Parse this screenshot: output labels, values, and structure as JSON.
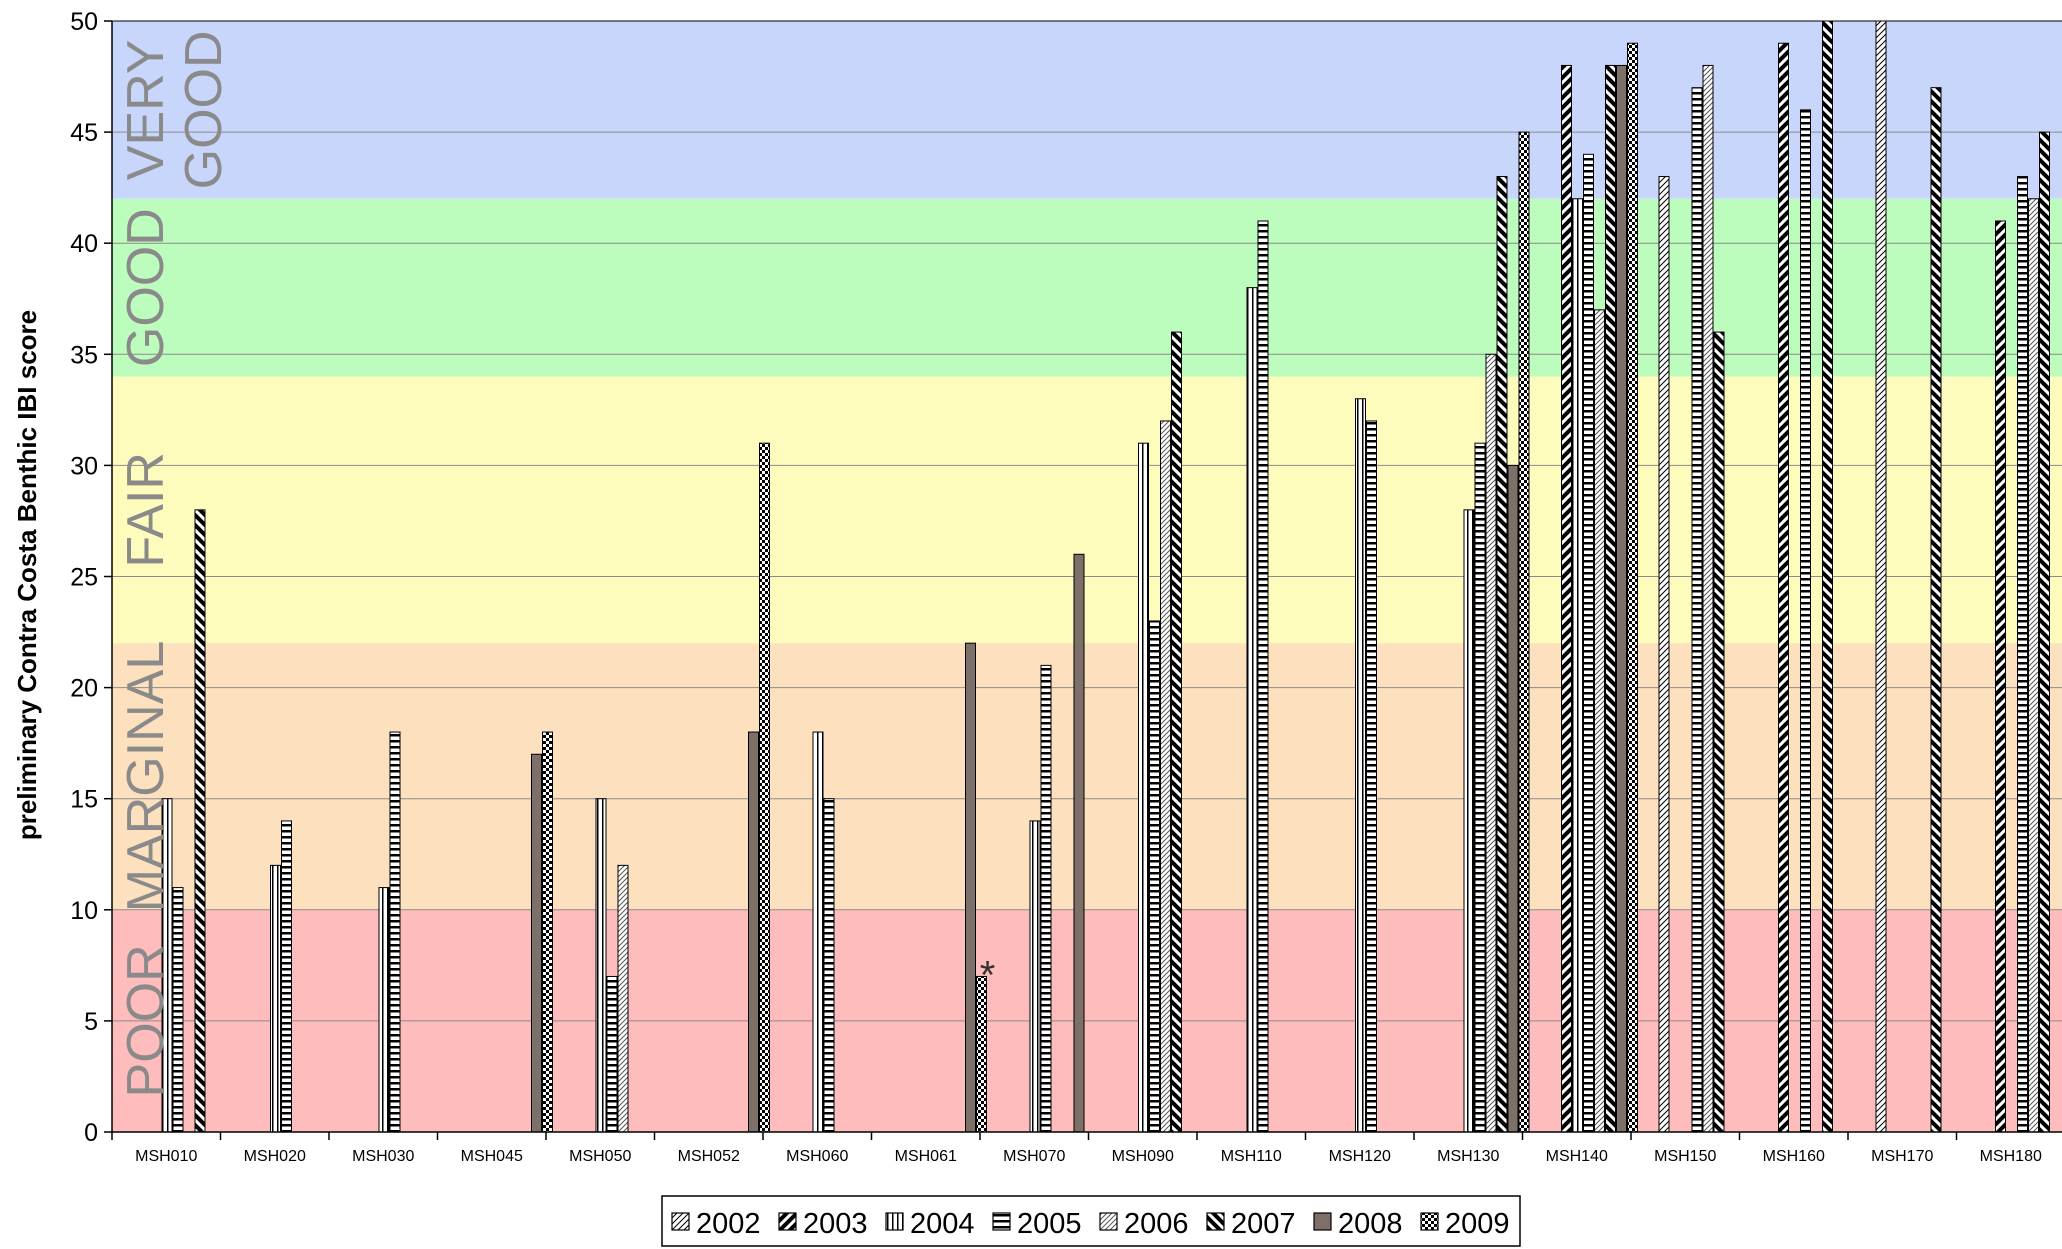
{
  "chart_data": {
    "type": "bar",
    "title": "",
    "xlabel": "",
    "ylabel": "preliminary Contra Costa Benthic IBI score",
    "ylim": [
      0,
      50
    ],
    "yticks": [
      "0",
      "5",
      "10",
      "15",
      "20",
      "25",
      "30",
      "35",
      "40",
      "45",
      "50"
    ],
    "grid": true,
    "legend_position": "bottom",
    "categories": [
      "MSH010",
      "MSH020",
      "MSH030",
      "MSH045",
      "MSH050",
      "MSH052",
      "MSH060",
      "MSH061",
      "MSH070",
      "MSH090",
      "MSH110",
      "MSH120",
      "MSH130",
      "MSH140",
      "MSH150",
      "MSH160",
      "MSH170",
      "MSH180"
    ],
    "bands": [
      {
        "label": "POOR",
        "from": 0,
        "to": 10,
        "color": "#ffbcbc"
      },
      {
        "label": "MARGINAL",
        "from": 10,
        "to": 22,
        "color": "#fde0be"
      },
      {
        "label": "FAIR",
        "from": 22,
        "to": 34,
        "color": "#fefcbc"
      },
      {
        "label": "GOOD",
        "from": 34,
        "to": 42,
        "color": "#bcfcbc"
      },
      {
        "label": "VERY GOOD",
        "from": 42,
        "to": 50,
        "color": "#c8d6fc"
      }
    ],
    "series": [
      {
        "name": "2002",
        "values": [
          null,
          null,
          null,
          null,
          null,
          null,
          null,
          null,
          null,
          null,
          null,
          null,
          null,
          null,
          43,
          null,
          50,
          null
        ]
      },
      {
        "name": "2003",
        "values": [
          null,
          null,
          null,
          null,
          null,
          null,
          null,
          null,
          null,
          null,
          null,
          null,
          null,
          48,
          null,
          49,
          null,
          41
        ]
      },
      {
        "name": "2004",
        "values": [
          15,
          12,
          11,
          null,
          15,
          null,
          18,
          null,
          14,
          31,
          38,
          33,
          28,
          42,
          null,
          null,
          null,
          null
        ]
      },
      {
        "name": "2005",
        "values": [
          11,
          14,
          18,
          null,
          7,
          null,
          15,
          null,
          21,
          23,
          41,
          32,
          31,
          44,
          47,
          46,
          null,
          43
        ]
      },
      {
        "name": "2006",
        "values": [
          null,
          null,
          null,
          null,
          12,
          null,
          null,
          null,
          null,
          32,
          null,
          null,
          35,
          37,
          48,
          null,
          null,
          42
        ]
      },
      {
        "name": "2007",
        "values": [
          28,
          null,
          null,
          null,
          null,
          null,
          null,
          null,
          null,
          36,
          null,
          null,
          43,
          48,
          36,
          50,
          47,
          45
        ]
      },
      {
        "name": "2008",
        "values": [
          null,
          null,
          null,
          17,
          null,
          18,
          null,
          22,
          26,
          null,
          null,
          null,
          30,
          48,
          null,
          null,
          null,
          null
        ]
      },
      {
        "name": "2009",
        "values": [
          null,
          null,
          null,
          18,
          null,
          31,
          null,
          7,
          null,
          null,
          null,
          null,
          45,
          49,
          null,
          null,
          null,
          null
        ]
      }
    ],
    "annotations": [
      {
        "text": "*",
        "category": "MSH061"
      }
    ]
  }
}
